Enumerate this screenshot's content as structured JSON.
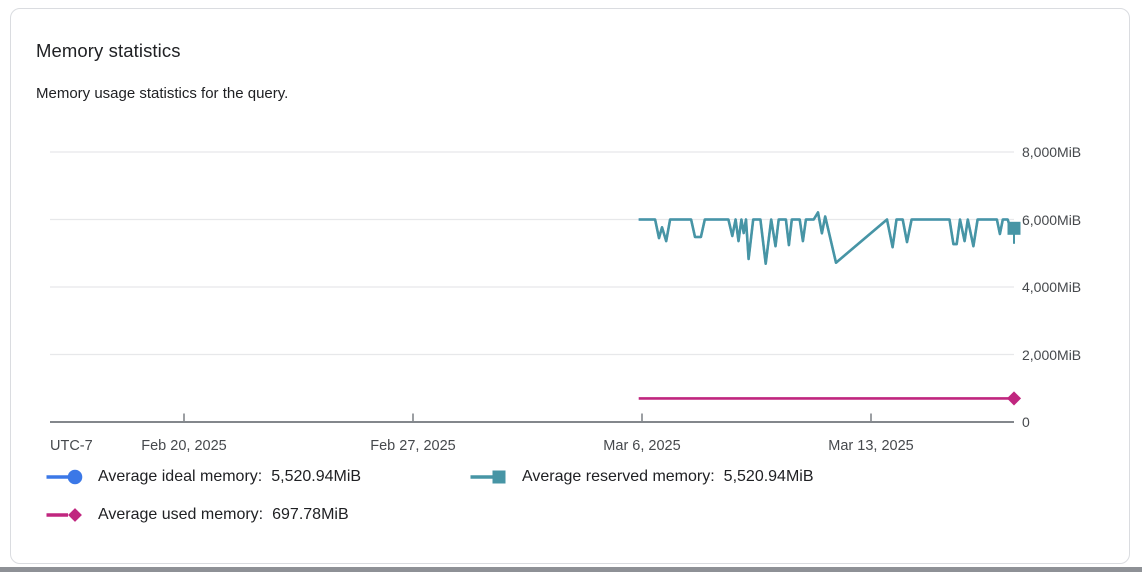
{
  "card": {
    "title": "Memory statistics",
    "subtitle": "Memory usage statistics for the query."
  },
  "legend": {
    "items": [
      {
        "name": "Average ideal memory:",
        "value": "5,520.94MiB"
      },
      {
        "name": "Average reserved memory:",
        "value": "5,520.94MiB"
      },
      {
        "name": "Average used memory:",
        "value": "697.78MiB"
      }
    ]
  },
  "chart_data": {
    "type": "line",
    "title": "Memory statistics",
    "x_axis": {
      "timezone_label": "UTC-7",
      "tick_labels": [
        "Feb 20, 2025",
        "Feb 27, 2025",
        "Mar 6, 2025",
        "Mar 13, 2025"
      ],
      "tick_days": [
        0,
        7,
        14,
        21
      ],
      "range_days": [
        -4.1,
        25.37
      ]
    },
    "y_axis": {
      "unit": "MiB",
      "range": [
        0,
        8000
      ],
      "tick_values": [
        0,
        2000,
        4000,
        6000,
        8000
      ],
      "tick_labels": [
        "0",
        "2,000MiB",
        "4,000MiB",
        "6,000MiB",
        "8,000MiB"
      ]
    },
    "series": [
      {
        "id": "ideal",
        "name": "Average ideal memory",
        "average_label": "5,520.94MiB",
        "color": "#3B78E7",
        "marker": "circle",
        "end_marker": false,
        "points": "same_as_reserved"
      },
      {
        "id": "reserved",
        "name": "Average reserved memory",
        "average_label": "5,520.94MiB",
        "color": "#4795A5",
        "marker": "square",
        "end_marker": true,
        "points": [
          [
            13.9,
            6000
          ],
          [
            14.4,
            6000
          ],
          [
            14.52,
            5450
          ],
          [
            14.61,
            5770
          ],
          [
            14.74,
            5360
          ],
          [
            14.86,
            6000
          ],
          [
            15.5,
            6000
          ],
          [
            15.62,
            5480
          ],
          [
            15.8,
            5480
          ],
          [
            15.92,
            6000
          ],
          [
            16.64,
            6000
          ],
          [
            16.76,
            5510
          ],
          [
            16.86,
            6000
          ],
          [
            16.95,
            5360
          ],
          [
            17.04,
            6000
          ],
          [
            17.11,
            5600
          ],
          [
            17.18,
            6000
          ],
          [
            17.26,
            4830
          ],
          [
            17.4,
            6000
          ],
          [
            17.62,
            6000
          ],
          [
            17.78,
            4690
          ],
          [
            17.95,
            6000
          ],
          [
            18.08,
            5210
          ],
          [
            18.18,
            6000
          ],
          [
            18.4,
            6000
          ],
          [
            18.49,
            5240
          ],
          [
            18.58,
            6000
          ],
          [
            18.82,
            6000
          ],
          [
            18.92,
            5360
          ],
          [
            19.01,
            6000
          ],
          [
            19.25,
            6000
          ],
          [
            19.38,
            6210
          ],
          [
            19.5,
            5590
          ],
          [
            19.6,
            6090
          ],
          [
            19.93,
            4720
          ],
          [
            21.49,
            6000
          ],
          [
            21.66,
            5180
          ],
          [
            21.78,
            6000
          ],
          [
            21.97,
            6000
          ],
          [
            22.1,
            5330
          ],
          [
            22.24,
            6000
          ],
          [
            23.4,
            6000
          ],
          [
            23.52,
            5270
          ],
          [
            23.62,
            5270
          ],
          [
            23.72,
            6000
          ],
          [
            23.86,
            5360
          ],
          [
            23.96,
            6000
          ],
          [
            24.13,
            5210
          ],
          [
            24.26,
            6000
          ],
          [
            24.85,
            6000
          ],
          [
            24.94,
            5570
          ],
          [
            25.03,
            6000
          ],
          [
            25.18,
            6000
          ],
          [
            25.26,
            5740
          ],
          [
            25.37,
            5740
          ]
        ]
      },
      {
        "id": "used",
        "name": "Average used memory",
        "average_label": "697.78MiB",
        "color": "#C0267F",
        "marker": "diamond",
        "end_marker": true,
        "points": [
          [
            13.9,
            698
          ],
          [
            25.37,
            698
          ]
        ]
      }
    ],
    "end_whisker": {
      "series": "reserved",
      "day": 25.37,
      "from_value": 5570,
      "to_value": 5280
    },
    "grid": "horizontal-only",
    "legend_position": "bottom-left"
  }
}
